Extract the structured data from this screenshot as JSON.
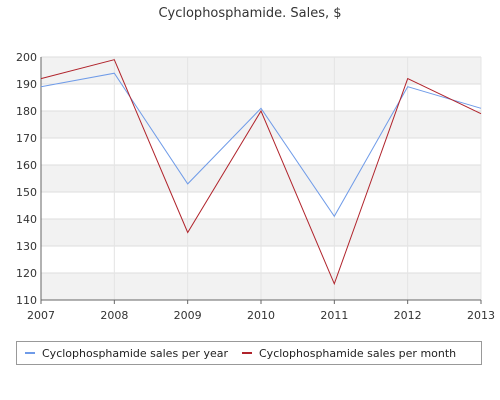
{
  "chart_data": {
    "type": "line",
    "title": "Cyclophosphamide. Sales, $",
    "xlabel": "",
    "ylabel": "",
    "x": [
      "2007",
      "2008",
      "2009",
      "2010",
      "2011",
      "2012",
      "2013"
    ],
    "ylim": [
      110,
      200
    ],
    "yticks": [
      110,
      120,
      130,
      140,
      150,
      160,
      170,
      180,
      190,
      200
    ],
    "grid": true,
    "legend_position": "bottom",
    "series": [
      {
        "name": "Cyclophosphamide sales per year",
        "color": "#6f9be8",
        "values": [
          189,
          194,
          153,
          181,
          141,
          189,
          181
        ]
      },
      {
        "name": "Cyclophosphamide sales per month",
        "color": "#b0232b",
        "values": [
          192,
          199,
          135,
          180,
          116,
          192,
          179
        ]
      }
    ]
  }
}
